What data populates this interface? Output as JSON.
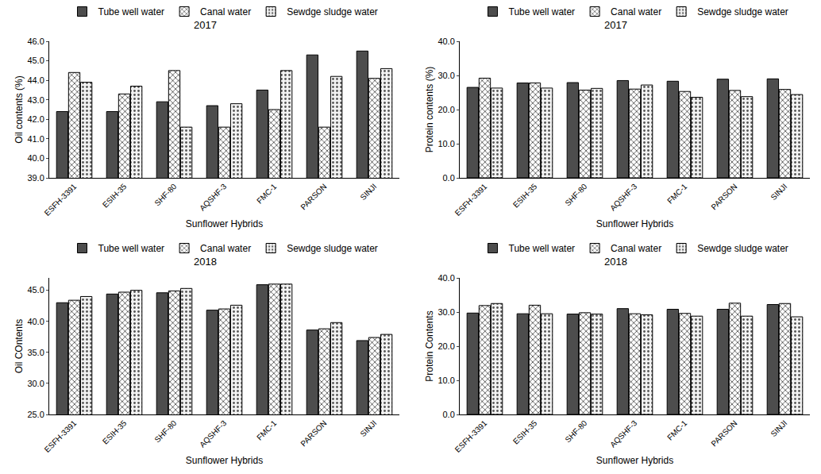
{
  "chart_data": [
    {
      "type": "bar",
      "title": "2017",
      "x_label": "Sunflower Hybrids",
      "y_label": "Oil contents (%)",
      "categories": [
        "ESFH-3391",
        "ESIH-35",
        "SHF-80",
        "AQSHF-3",
        "FMC-1",
        "PARSON",
        "SINJI"
      ],
      "series": [
        {
          "name": "Tube well water",
          "color": "#4d4d4d",
          "values": [
            42.4,
            42.4,
            42.9,
            42.7,
            43.5,
            45.3,
            45.5
          ]
        },
        {
          "name": "Canal water",
          "color": "#ffffff",
          "values": [
            44.4,
            43.3,
            44.5,
            41.6,
            42.5,
            41.6,
            44.1
          ]
        },
        {
          "name": "Sewdge sludge water",
          "color": "#f2f2f2",
          "values": [
            43.9,
            43.7,
            41.6,
            42.8,
            44.5,
            44.2,
            44.6
          ]
        }
      ],
      "ylim": [
        39,
        46
      ],
      "yticks": [
        {
          "value": 39,
          "label": "39.0"
        },
        {
          "value": 40,
          "label": "40.0"
        },
        {
          "value": 41,
          "label": "41.0"
        },
        {
          "value": 42,
          "label": "42.0"
        },
        {
          "value": 43,
          "label": "43.0"
        },
        {
          "value": 44,
          "label": "44.0"
        },
        {
          "value": 45,
          "label": "45.0"
        },
        {
          "value": 46,
          "label": "46.0"
        }
      ],
      "grid": false,
      "legend": "top"
    },
    {
      "type": "bar",
      "title": "2017",
      "x_label": "Sunflower Hybrids",
      "y_label": "Protein contents (%)",
      "categories": [
        "ESFH-3391",
        "ESIH-35",
        "SHF-80",
        "AQSHF-3",
        "FMC-1",
        "PARSON",
        "SINJI"
      ],
      "series": [
        {
          "name": "Tube well water",
          "color": "#4d4d4d",
          "values": [
            26.5,
            27.8,
            27.9,
            28.5,
            28.3,
            28.9,
            29.0
          ]
        },
        {
          "name": "Canal water",
          "color": "#ffffff",
          "values": [
            29.2,
            27.8,
            25.7,
            26.0,
            25.3,
            25.6,
            25.9
          ]
        },
        {
          "name": "Sewdge sludge water",
          "color": "#f2f2f2",
          "values": [
            26.3,
            26.3,
            26.2,
            27.2,
            23.6,
            23.8,
            24.4
          ]
        }
      ],
      "ylim": [
        0,
        40
      ],
      "yticks": [
        {
          "value": 0,
          "label": "0.0"
        },
        {
          "value": 10,
          "label": "10.0"
        },
        {
          "value": 20,
          "label": "20.0"
        },
        {
          "value": 30,
          "label": "30.0"
        },
        {
          "value": 40,
          "label": "40.0"
        }
      ],
      "grid": false,
      "legend": "top"
    },
    {
      "type": "bar",
      "title": "2018",
      "x_label": "Sunflower Hybrids",
      "y_label": "Oil COntents",
      "categories": [
        "ESFH-3391",
        "ESIH-35",
        "SHF-80",
        "AQSHF-3",
        "FMC-1",
        "PARSON",
        "SINJI"
      ],
      "series": [
        {
          "name": "Tube well water",
          "color": "#4d4d4d",
          "values": [
            43.0,
            44.4,
            44.6,
            41.8,
            45.9,
            38.6,
            36.9
          ]
        },
        {
          "name": "Canal water",
          "color": "#ffffff",
          "values": [
            43.4,
            44.7,
            44.9,
            42.0,
            46.0,
            38.8,
            37.4
          ]
        },
        {
          "name": "Sewdge sludge water",
          "color": "#f2f2f2",
          "values": [
            44.0,
            45.0,
            45.3,
            42.6,
            46.0,
            39.8,
            37.9
          ]
        }
      ],
      "ylim": [
        25,
        47
      ],
      "yticks": [
        {
          "value": 25,
          "label": "25.0"
        },
        {
          "value": 30,
          "label": "30.0"
        },
        {
          "value": 35,
          "label": "35.0"
        },
        {
          "value": 40,
          "label": "40.0"
        },
        {
          "value": 45,
          "label": "45.0"
        }
      ],
      "grid": false,
      "legend": "top"
    },
    {
      "type": "bar",
      "title": "2018",
      "x_label": "Sunflower Hybrids",
      "y_label": "Protein Contents",
      "categories": [
        "ESFH-3391",
        "ESIH-35",
        "SHF-80",
        "AQSHF-3",
        "FMC-1",
        "PARSON",
        "SINJI"
      ],
      "series": [
        {
          "name": "Tube well water",
          "color": "#4d4d4d",
          "values": [
            29.7,
            29.5,
            29.4,
            31.0,
            30.8,
            30.8,
            32.2
          ]
        },
        {
          "name": "Canal water",
          "color": "#ffffff",
          "values": [
            31.9,
            32.0,
            29.8,
            29.5,
            29.6,
            32.6,
            32.5
          ]
        },
        {
          "name": "Sewdge sludge water",
          "color": "#f2f2f2",
          "values": [
            32.5,
            29.5,
            29.4,
            29.2,
            28.8,
            28.8,
            28.6
          ]
        }
      ],
      "ylim": [
        0,
        40
      ],
      "yticks": [
        {
          "value": 0,
          "label": "0.0"
        },
        {
          "value": 10,
          "label": "10.0"
        },
        {
          "value": 20,
          "label": "20.0"
        },
        {
          "value": 30,
          "label": "30.0"
        },
        {
          "value": 40,
          "label": "40.0"
        }
      ],
      "grid": false,
      "legend": "top"
    }
  ]
}
